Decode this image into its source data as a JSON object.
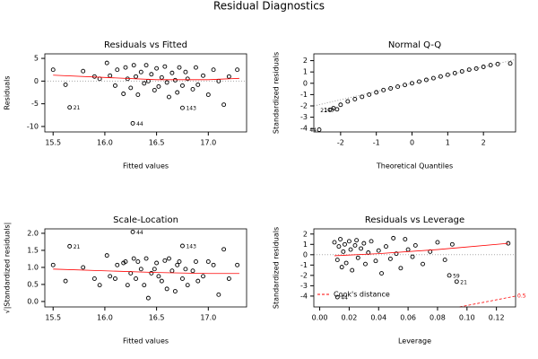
{
  "title": "Residual Diagnostics",
  "chart_data": [
    {
      "type": "scatter",
      "title": "Residuals vs Fitted",
      "x_label": "Fitted values",
      "y_label": "Residuals",
      "xlim": [
        15.42,
        17.37
      ],
      "ylim": [
        -11.2,
        6
      ],
      "xticks": [
        15.5,
        {
          "value": 16.0,
          "label": "16.0"
        },
        16.5,
        {
          "value": 17.0,
          "label": "17.0"
        }
      ],
      "yticks": [
        -10,
        -5,
        0,
        5
      ],
      "zero_line": true,
      "x": [
        15.5,
        15.62,
        15.79,
        15.9,
        15.95,
        16.02,
        16.05,
        16.1,
        16.12,
        16.18,
        16.2,
        16.22,
        16.25,
        16.28,
        16.3,
        16.32,
        16.35,
        16.38,
        16.4,
        16.42,
        16.45,
        16.48,
        16.5,
        16.52,
        16.55,
        16.58,
        16.6,
        16.62,
        16.65,
        16.68,
        16.7,
        16.72,
        16.75,
        16.78,
        16.8,
        16.85,
        16.88,
        16.9,
        16.95,
        17.0,
        17.05,
        17.1,
        17.15,
        17.2,
        17.28
      ],
      "y": [
        2.5,
        -0.8,
        2.2,
        1.0,
        0.5,
        4.0,
        1.2,
        -1.0,
        2.5,
        -2.8,
        3.0,
        0.5,
        -1.5,
        3.5,
        1.0,
        -3.0,
        2.0,
        -0.5,
        3.5,
        0.0,
        1.5,
        -2.0,
        2.8,
        -1.2,
        0.8,
        3.2,
        -0.3,
        -3.5,
        1.8,
        0.2,
        -2.5,
        3.0,
        -1.0,
        2.0,
        0.5,
        -1.8,
        3.0,
        -0.8,
        1.2,
        -3.0,
        2.5,
        0.0,
        -5.2,
        1.0,
        2.5
      ],
      "outliers": {
        "x": [
          15.66,
          16.27,
          16.75
        ],
        "y": [
          -5.8,
          -9.3,
          -5.9
        ],
        "labels": [
          "21",
          "44",
          "143"
        ]
      },
      "smooth": {
        "color": "#ff0000",
        "x": [
          15.5,
          16.0,
          16.5,
          17.0,
          17.3
        ],
        "y": [
          1.3,
          0.8,
          0.3,
          0.3,
          0.6
        ]
      }
    },
    {
      "type": "scatter",
      "title": "Normal Q-Q",
      "x_label": "Theoretical Quantiles",
      "y_label": "Standardized residuals",
      "xlim": [
        -2.75,
        2.9
      ],
      "ylim": [
        -4.3,
        2.6
      ],
      "xticks": [
        -2,
        -1,
        0,
        1,
        2
      ],
      "yticks": [
        -4,
        -3,
        -2,
        -1,
        0,
        1,
        2
      ],
      "x": [
        -2.2,
        -2.0,
        -1.8,
        -1.6,
        -1.4,
        -1.2,
        -1.0,
        -0.8,
        -0.6,
        -0.4,
        -0.2,
        0,
        0.2,
        0.4,
        0.6,
        0.8,
        1.0,
        1.2,
        1.4,
        1.6,
        1.8,
        2.0,
        2.2,
        2.4,
        2.75
      ],
      "y": [
        -2.2,
        -1.9,
        -1.6,
        -1.4,
        -1.2,
        -1.0,
        -0.8,
        -0.6,
        -0.45,
        -0.3,
        -0.15,
        0,
        0.15,
        0.3,
        0.45,
        0.6,
        0.75,
        0.9,
        1.05,
        1.2,
        1.3,
        1.45,
        1.6,
        1.7,
        1.75
      ],
      "outliers": {
        "x": [
          -2.3,
          -2.1,
          -2.6
        ],
        "y": [
          -2.35,
          -2.3,
          -4.1
        ],
        "labels": [
          "21",
          "143",
          "44"
        ]
      },
      "ref_line": {
        "color": "#999999",
        "x": [
          -2.75,
          2.9
        ],
        "y": [
          -2.0,
          2.1
        ]
      }
    },
    {
      "type": "scatter",
      "title": "Scale-Location",
      "x_label": "Fitted values",
      "y_label": "√|Standardized residuals|",
      "xlim": [
        15.42,
        17.37
      ],
      "ylim": [
        -0.16,
        2.13
      ],
      "xticks": [
        15.5,
        {
          "value": 16.0,
          "label": "16.0"
        },
        16.5,
        {
          "value": 17.0,
          "label": "17.0"
        }
      ],
      "yticks": [
        {
          "value": 0,
          "label": "0.0"
        },
        0.5,
        {
          "value": 1,
          "label": "1.0"
        },
        1.5,
        {
          "value": 2,
          "label": "2.0"
        }
      ],
      "x": [
        15.5,
        15.62,
        15.79,
        15.9,
        15.95,
        16.02,
        16.05,
        16.1,
        16.12,
        16.18,
        16.2,
        16.22,
        16.25,
        16.28,
        16.3,
        16.32,
        16.35,
        16.38,
        16.4,
        16.42,
        16.45,
        16.48,
        16.5,
        16.52,
        16.55,
        16.58,
        16.6,
        16.62,
        16.65,
        16.68,
        16.7,
        16.72,
        16.75,
        16.78,
        16.8,
        16.85,
        16.88,
        16.9,
        16.95,
        17.0,
        17.05,
        17.1,
        17.15,
        17.2,
        17.28
      ],
      "y": [
        1.07,
        0.6,
        1.0,
        0.67,
        0.48,
        1.35,
        0.74,
        0.67,
        1.07,
        1.13,
        1.17,
        0.48,
        0.83,
        1.26,
        0.67,
        1.17,
        0.95,
        0.48,
        1.26,
        0.1,
        0.83,
        0.95,
        1.13,
        0.74,
        0.6,
        1.2,
        0.37,
        1.26,
        0.9,
        0.3,
        1.07,
        1.17,
        0.67,
        0.95,
        0.48,
        0.9,
        1.17,
        0.6,
        0.74,
        1.17,
        1.07,
        0.2,
        1.53,
        0.67,
        1.07
      ],
      "outliers": {
        "x": [
          15.66,
          16.27,
          16.75
        ],
        "y": [
          1.62,
          2.04,
          1.63
        ],
        "labels": [
          "21",
          "44",
          "143"
        ]
      },
      "smooth": {
        "color": "#ff0000",
        "x": [
          15.5,
          16.0,
          16.5,
          17.0,
          17.3
        ],
        "y": [
          0.95,
          0.9,
          0.85,
          0.82,
          0.82
        ]
      }
    },
    {
      "type": "scatter",
      "title": "Residuals vs Leverage",
      "x_label": "Leverage",
      "y_label": "Standardized residuals",
      "xlim": [
        -0.004,
        0.133
      ],
      "ylim": [
        -5.05,
        2.5
      ],
      "xticks": [
        {
          "value": 0,
          "label": "0.00"
        },
        0.02,
        0.04,
        0.06,
        0.08,
        {
          "value": 0.1,
          "label": "0.10"
        },
        0.12
      ],
      "yticks": [
        -4,
        -3,
        -2,
        -1,
        0,
        1,
        2
      ],
      "zero_line": true,
      "x": [
        0.01,
        0.012,
        0.013,
        0.014,
        0.015,
        0.016,
        0.017,
        0.018,
        0.02,
        0.021,
        0.022,
        0.024,
        0.025,
        0.026,
        0.028,
        0.03,
        0.031,
        0.033,
        0.035,
        0.038,
        0.04,
        0.042,
        0.045,
        0.048,
        0.05,
        0.052,
        0.055,
        0.058,
        0.06,
        0.063,
        0.065,
        0.07,
        0.075,
        0.08,
        0.085,
        0.09,
        0.128
      ],
      "y": [
        1.2,
        -0.5,
        0.8,
        1.5,
        -1.2,
        0.3,
        1.0,
        -0.8,
        1.3,
        0.5,
        -1.5,
        0.9,
        1.4,
        -0.3,
        0.6,
        1.1,
        -0.9,
        0.2,
        1.3,
        -0.6,
        0.4,
        -1.8,
        0.8,
        -0.4,
        1.6,
        0.1,
        -1.3,
        1.5,
        0.5,
        -0.2,
        0.9,
        -0.9,
        0.3,
        1.2,
        -0.5,
        1.0,
        1.1
      ],
      "outliers": {
        "x": [
          0.088,
          0.093,
          0.012
        ],
        "y": [
          -2.0,
          -2.6,
          -4.1
        ],
        "labels": [
          "59",
          "21",
          "44"
        ]
      },
      "smooth": {
        "color": "#ff0000",
        "x": [
          0.01,
          0.04,
          0.08,
          0.128
        ],
        "y": [
          -0.1,
          0.1,
          0.5,
          1.1
        ]
      },
      "cook": {
        "color": "#ff0000",
        "legend": "Cook's distance",
        "label": "0.5",
        "x": [
          0.095,
          0.133
        ],
        "y": [
          -5.05,
          -4.0
        ]
      }
    }
  ]
}
